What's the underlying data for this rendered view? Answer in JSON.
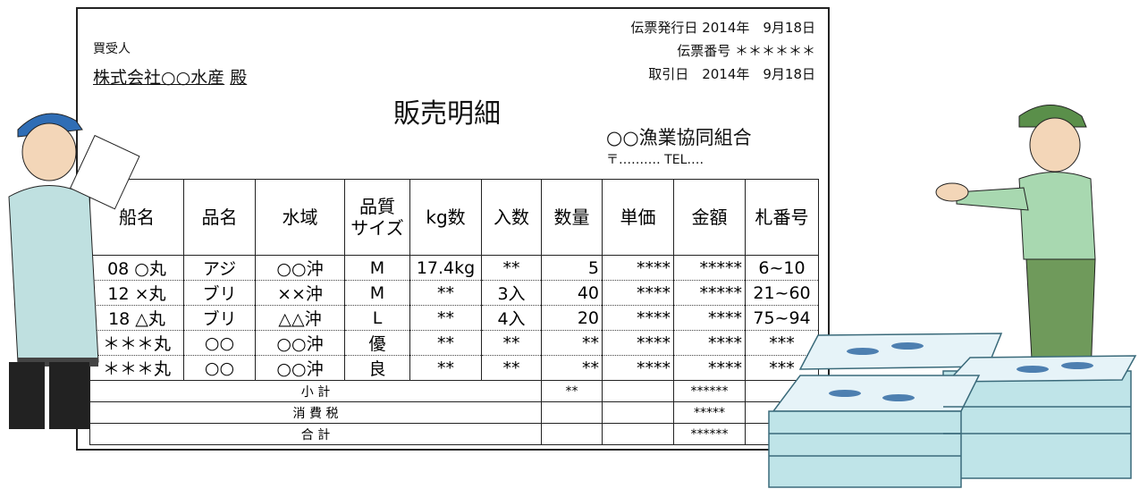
{
  "header": {
    "buyer_label": "買受人",
    "buyer": "株式会社○○水産",
    "buyer_suffix": "殿",
    "issue_date": "伝票発行日 2014年　9月18日",
    "slip_no": "伝票番号 ＊＊＊＊＊＊",
    "trade_date": "取引日　2014年　9月18日",
    "title": "販売明細",
    "seller": "○○漁業協同組合",
    "contact": "〒‥‥‥‥‥ TEL‥‥"
  },
  "table": {
    "columns": [
      "船名",
      "品名",
      "水域",
      [
        "品質",
        "サイズ"
      ],
      "kg数",
      "入数",
      "数量",
      "単価",
      "金額",
      "札番号"
    ],
    "rows": [
      [
        "08 ○丸",
        "アジ",
        "○○沖",
        "M",
        "17.4kg",
        "**",
        "5",
        "****",
        "*****",
        "6~10"
      ],
      [
        "12 ×丸",
        "ブリ",
        "××沖",
        "M",
        "**",
        "3入",
        "40",
        "****",
        "*****",
        "21~60"
      ],
      [
        "18 △丸",
        "ブリ",
        "△△沖",
        "L",
        "**",
        "4入",
        "20",
        "****",
        "****",
        "75~94"
      ],
      [
        "＊＊＊丸",
        "○○",
        "○○沖",
        "優",
        "**",
        "**",
        "**",
        "****",
        "****",
        "***"
      ],
      [
        "＊＊＊丸",
        "○○",
        "○○沖",
        "良",
        "**",
        "**",
        "**",
        "****",
        "****",
        "***"
      ]
    ],
    "totals": [
      {
        "label": "小 計",
        "quantity": "**",
        "amount": "******"
      },
      {
        "label": "消 費 税",
        "amount": "*****"
      },
      {
        "label": "合 計",
        "amount": "******"
      }
    ]
  }
}
